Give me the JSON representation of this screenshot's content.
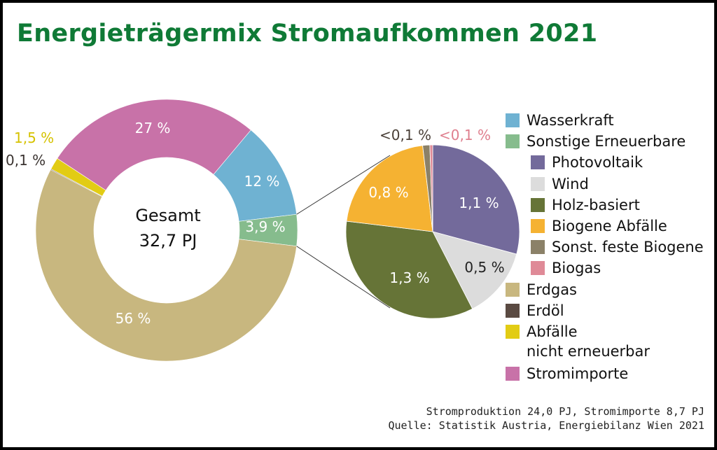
{
  "title": "Energieträgermix Stromaufkommen 2021",
  "chart_data": [
    {
      "type": "pie",
      "variant": "donut",
      "center_text": [
        "Gesamt",
        "32,7 PJ"
      ],
      "slices": [
        {
          "name": "Wasserkraft",
          "value": 12,
          "label": "12 %",
          "color": "#6fb2d2"
        },
        {
          "name": "Sonstige Erneuerbare",
          "value": 3.9,
          "label": "3,9 %",
          "color": "#86bc8d"
        },
        {
          "name": "Erdgas",
          "value": 56,
          "label": "56 %",
          "color": "#c8b77f"
        },
        {
          "name": "Erdöl",
          "value": 0.1,
          "label": "0,1 %",
          "color": "#5a4a42"
        },
        {
          "name": "Abfälle nicht erneuerbar",
          "value": 1.5,
          "label": "1,5 %",
          "color": "#e2cc14"
        },
        {
          "name": "Stromimporte",
          "value": 27,
          "label": "27 %",
          "color": "#c872a8"
        }
      ]
    },
    {
      "type": "pie",
      "slices": [
        {
          "name": "Photovoltaik",
          "value": 1.1,
          "label": "1,1 %",
          "color": "#736a9b"
        },
        {
          "name": "Wind",
          "value": 0.5,
          "label": "0,5 %",
          "color": "#dcdcdc"
        },
        {
          "name": "Holz-basiert",
          "value": 1.3,
          "label": "1,3 %",
          "color": "#667437"
        },
        {
          "name": "Biogene Abfälle",
          "value": 0.8,
          "label": "0,8 %",
          "color": "#f5b232"
        },
        {
          "name": "Sonst. feste Biogene",
          "value": 0.05,
          "label": "<0,1 %",
          "color": "#8b8168"
        },
        {
          "name": "Biogas",
          "value": 0.02,
          "label": "<0,1 %",
          "color": "#df8a97"
        }
      ]
    }
  ],
  "legend": [
    {
      "label": "Wasserkraft",
      "color": "#6fb2d2",
      "indent": false
    },
    {
      "label": "Sonstige Erneuerbare",
      "color": "#86bc8d",
      "indent": false
    },
    {
      "label": "Photovoltaik",
      "color": "#736a9b",
      "indent": true
    },
    {
      "label": "Wind",
      "color": "#dcdcdc",
      "indent": true
    },
    {
      "label": "Holz-basiert",
      "color": "#667437",
      "indent": true
    },
    {
      "label": "Biogene Abfälle",
      "color": "#f5b232",
      "indent": true
    },
    {
      "label": "Sonst. feste Biogene",
      "color": "#8b8168",
      "indent": true
    },
    {
      "label": "Biogas",
      "color": "#df8a97",
      "indent": true
    },
    {
      "label": "Erdgas",
      "color": "#c8b77f",
      "indent": false
    },
    {
      "label": "Erdöl",
      "color": "#5a4a42",
      "indent": false
    },
    {
      "label": "Abfälle\nnicht erneuerbar",
      "color": "#e2cc14",
      "indent": false
    },
    {
      "label": "Stromimporte",
      "color": "#c872a8",
      "indent": false
    }
  ],
  "footer": {
    "line1": "Stromproduktion 24,0 PJ, Stromimporte 8,7 PJ",
    "line2": "Quelle: Statistik Austria, Energiebilanz Wien 2021"
  }
}
